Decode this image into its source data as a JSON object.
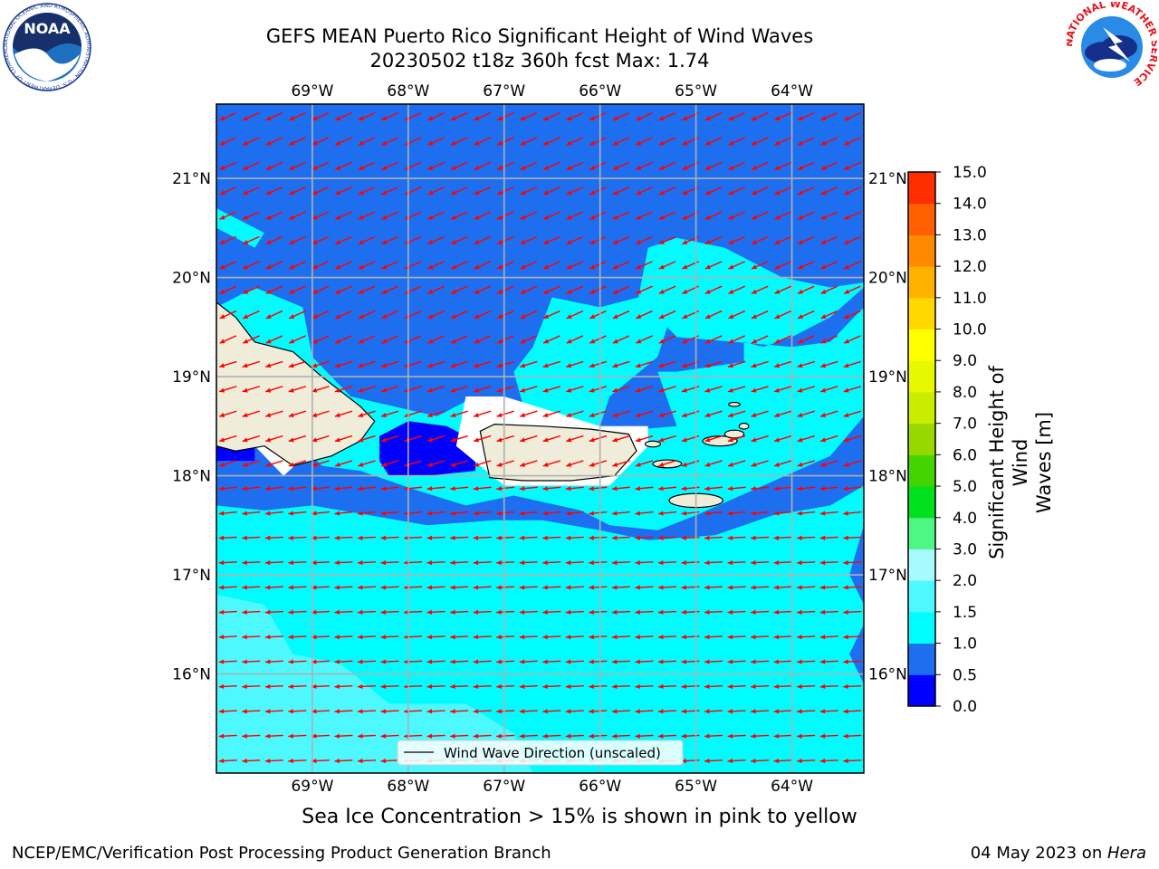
{
  "header": {
    "title_line1": "GEFS MEAN Puerto Rico Significant Height of Wind Waves",
    "title_line2": "20230502 t18z 360h fcst   Max: 1.74"
  },
  "logos": {
    "noaa_text": "NOAA",
    "noaa_ring": "NATIONAL OCEANIC AND ATMOSPHERIC ADMINISTRATION · U.S. DEPARTMENT OF COMMERCE",
    "nws_ring": "NATIONAL WEATHER SERVICE"
  },
  "map": {
    "lon_labels": [
      "69°W",
      "68°W",
      "67°W",
      "66°W",
      "65°W",
      "64°W"
    ],
    "lat_labels": [
      "21°N",
      "20°N",
      "19°N",
      "18°N",
      "17°N",
      "16°N"
    ],
    "lon_range": [
      -70.0,
      -63.25
    ],
    "lat_range": [
      15.0,
      21.75
    ],
    "legend_label": "Wind Wave Direction (unscaled)",
    "arrow_color": "#ff0000",
    "land_color": "#efedda"
  },
  "colorbar": {
    "title_line1": "Significant Height of Wind",
    "title_line2": "Waves [m]",
    "levels": [
      "0.0",
      "0.5",
      "1.0",
      "1.5",
      "2.0",
      "3.0",
      "4.0",
      "5.0",
      "6.0",
      "7.0",
      "8.0",
      "9.0",
      "10.0",
      "11.0",
      "12.0",
      "13.0",
      "14.0",
      "15.0"
    ],
    "colors": [
      "#0000ff",
      "#1e6ff0",
      "#00fcff",
      "#4ef8ff",
      "#a5fbff",
      "#50f684",
      "#00e01c",
      "#44d400",
      "#98d800",
      "#c8ed00",
      "#e8f800",
      "#ffff00",
      "#ffd800",
      "#ffb100",
      "#ff8a00",
      "#ff5f00",
      "#ff2e00"
    ]
  },
  "caption": "Sea Ice Concentration > 15% is shown in pink to yellow",
  "footer": {
    "left": "NCEP/EMC/Verification Post Processing Product Generation Branch",
    "right_prefix": "04 May 2023 on ",
    "right_machine": "Hera"
  }
}
